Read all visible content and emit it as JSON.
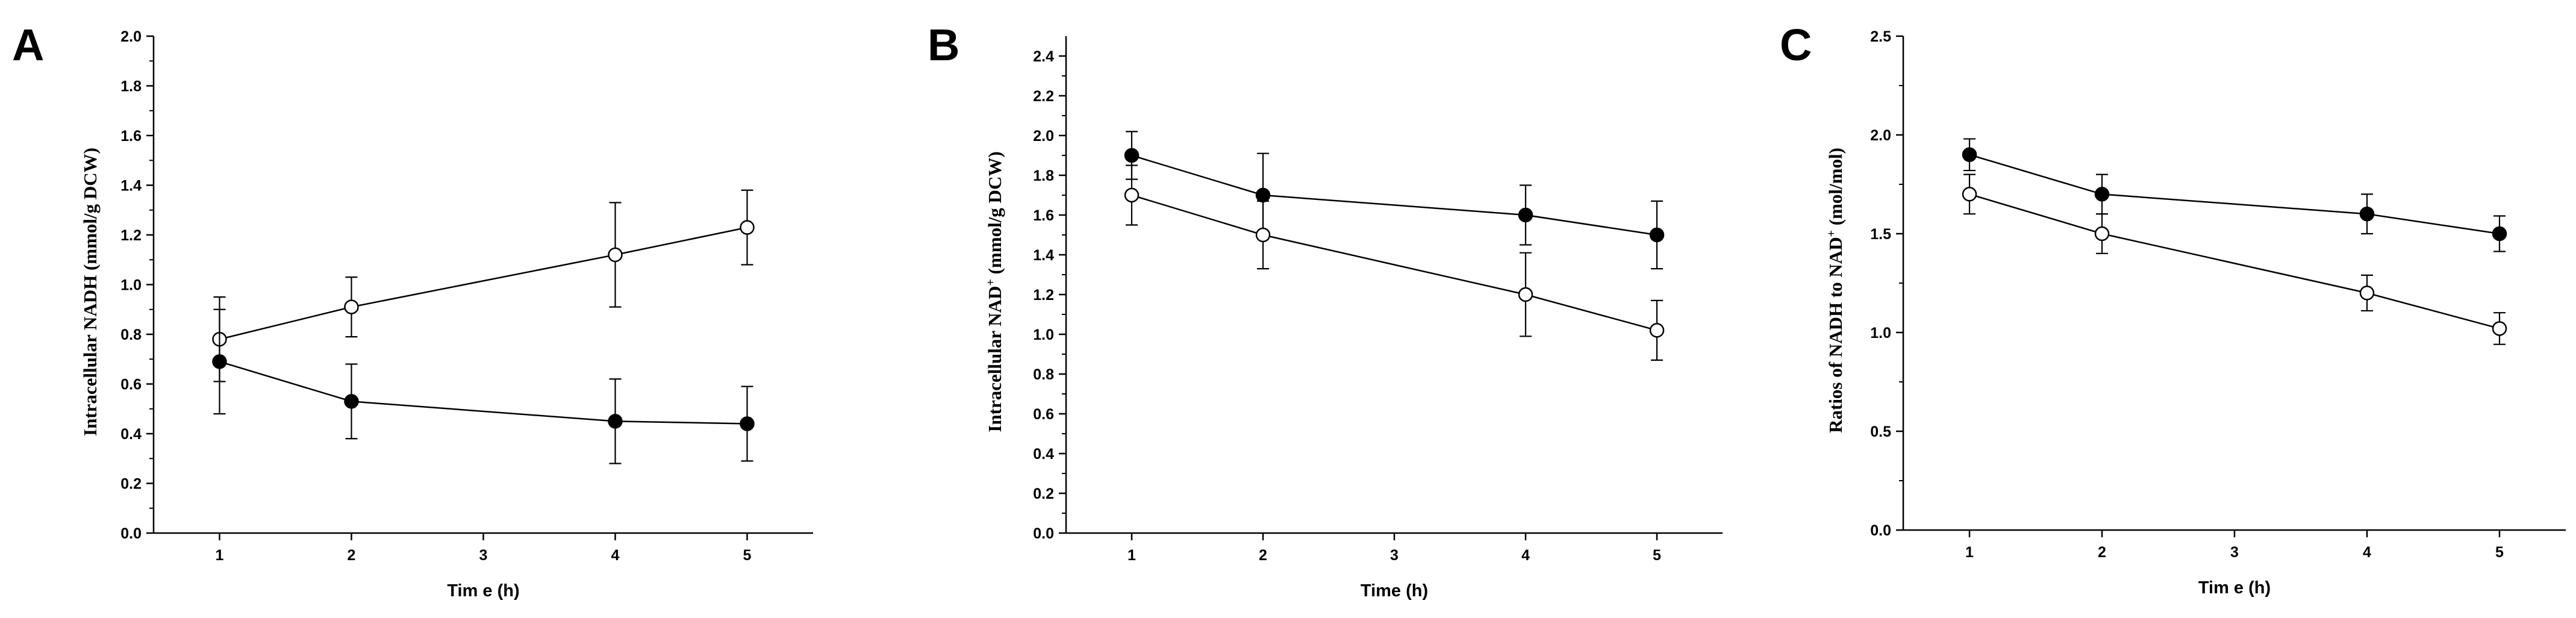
{
  "figure": {
    "background": "#ffffff",
    "ink": "#000000"
  },
  "chart_data": [
    {
      "panel": "A",
      "type": "line",
      "xlabel": "Tim e (h)",
      "ylabel": "Intracellular NADH (mmol/g DCW)",
      "ylabel_superscript": "",
      "x_ticks": [
        "1",
        "2",
        "3",
        "4",
        "5"
      ],
      "y_ticks": [
        "0.0",
        "0.2",
        "0.4",
        "0.6",
        "0.8",
        "1.0",
        "1.2",
        "1.4",
        "1.6",
        "1.8",
        "2.0"
      ],
      "xlim": [
        0.5,
        5.5
      ],
      "ylim": [
        0,
        2.0
      ],
      "series": [
        {
          "name": "open circles",
          "marker": "open",
          "x": [
            1,
            2,
            4,
            5
          ],
          "y": [
            0.78,
            0.91,
            1.12,
            1.23
          ],
          "err": [
            0.17,
            0.12,
            0.21,
            0.15
          ]
        },
        {
          "name": "filled circles",
          "marker": "filled",
          "x": [
            1,
            2,
            4,
            5
          ],
          "y": [
            0.69,
            0.53,
            0.45,
            0.44
          ],
          "err": [
            0.21,
            0.15,
            0.17,
            0.15
          ]
        }
      ]
    },
    {
      "panel": "B",
      "type": "line",
      "xlabel": "Time (h)",
      "ylabel": "Intracellular NAD",
      "ylabel_superscript": "+",
      "ylabel_suffix": " (mmol/g DCW)",
      "x_ticks": [
        "1",
        "2",
        "3",
        "4",
        "5"
      ],
      "y_ticks": [
        "0.0",
        "0.2",
        "0.4",
        "0.6",
        "0.8",
        "1.0",
        "1.2",
        "1.4",
        "1.6",
        "1.8",
        "2.0",
        "2.2",
        "2.4"
      ],
      "xlim": [
        0.5,
        5.5
      ],
      "ylim": [
        0,
        2.5
      ],
      "series": [
        {
          "name": "filled circles",
          "marker": "filled",
          "x": [
            1,
            2,
            4,
            5
          ],
          "y": [
            1.9,
            1.7,
            1.6,
            1.5
          ],
          "err": [
            0.12,
            0.21,
            0.15,
            0.17
          ]
        },
        {
          "name": "open circles",
          "marker": "open",
          "x": [
            1,
            2,
            4,
            5
          ],
          "y": [
            1.7,
            1.5,
            1.2,
            1.02
          ],
          "err": [
            0.15,
            0.17,
            0.21,
            0.15
          ]
        }
      ]
    },
    {
      "panel": "C",
      "type": "line",
      "xlabel": "Tim e (h)",
      "ylabel": "Ratios of NADH to NAD",
      "ylabel_superscript": "+",
      "ylabel_suffix": " (mol/mol)",
      "x_ticks": [
        "1",
        "2",
        "3",
        "4",
        "5"
      ],
      "y_ticks": [
        "0.0",
        "0.5",
        "1.0",
        "1.5",
        "2.0",
        "2.5"
      ],
      "xlim": [
        0.5,
        5.5
      ],
      "ylim": [
        0,
        2.5
      ],
      "series": [
        {
          "name": "filled circles",
          "marker": "filled",
          "x": [
            1,
            2,
            4,
            5
          ],
          "y": [
            1.9,
            1.7,
            1.6,
            1.5
          ],
          "err": [
            0.08,
            0.1,
            0.1,
            0.09
          ]
        },
        {
          "name": "open circles",
          "marker": "open",
          "x": [
            1,
            2,
            4,
            5
          ],
          "y": [
            1.7,
            1.5,
            1.2,
            1.02
          ],
          "err": [
            0.1,
            0.1,
            0.09,
            0.08
          ]
        }
      ]
    }
  ]
}
